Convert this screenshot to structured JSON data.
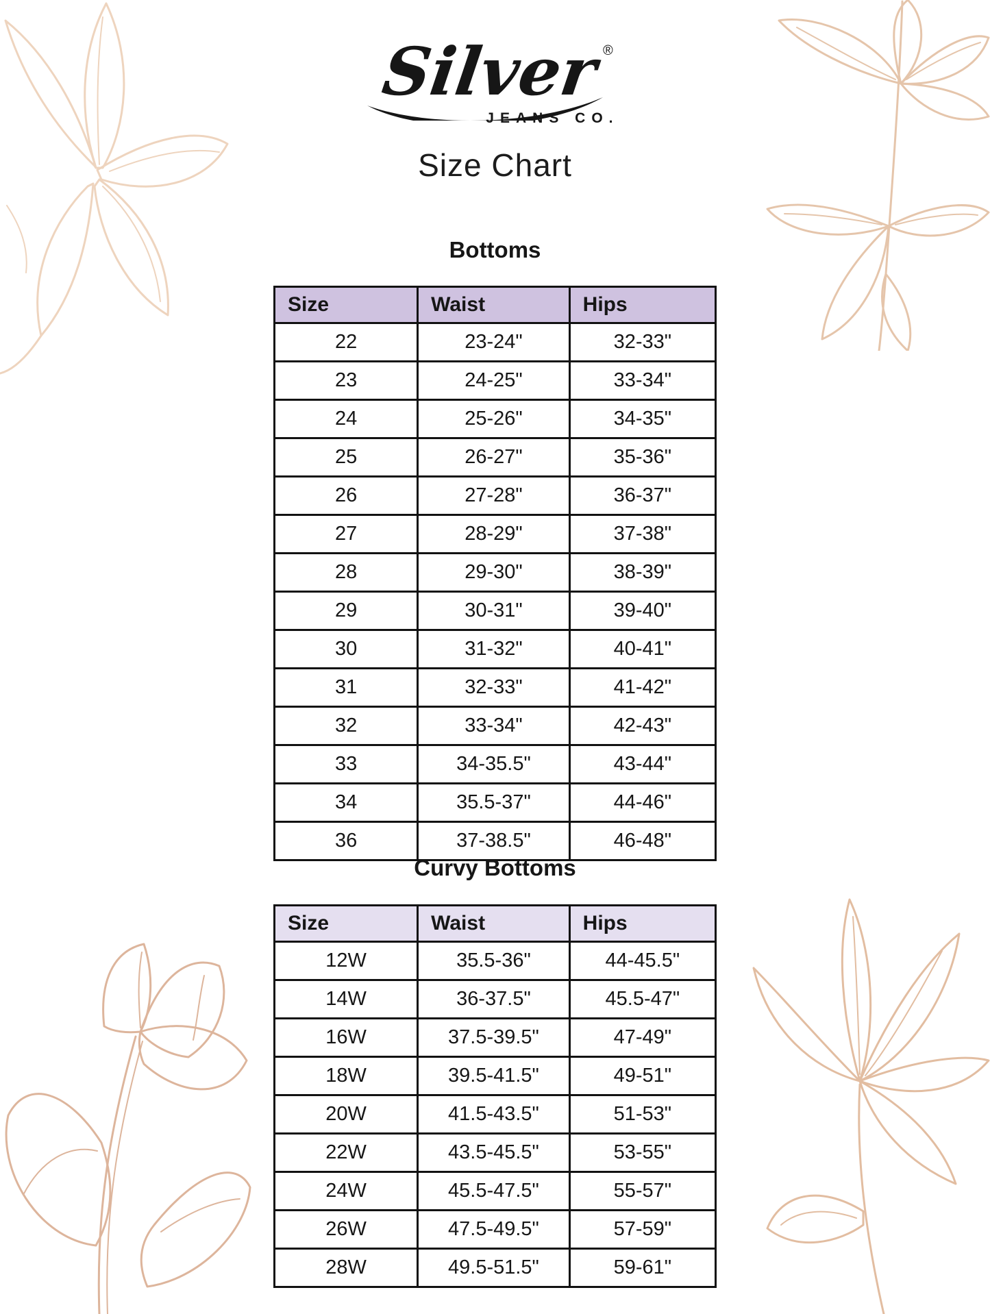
{
  "brand": {
    "logo_text": "Silver",
    "logo_subtext": "JEANS CO.",
    "registered_mark": "®"
  },
  "page_title": "Size Chart",
  "sections": {
    "bottoms": {
      "heading": "Bottoms",
      "table": {
        "columns": [
          "Size",
          "Waist",
          "Hips"
        ],
        "header_bg": "#cfc2e0",
        "rows": [
          [
            "22",
            "23-24\"",
            "32-33\""
          ],
          [
            "23",
            "24-25\"",
            "33-34\""
          ],
          [
            "24",
            "25-26\"",
            "34-35\""
          ],
          [
            "25",
            "26-27\"",
            "35-36\""
          ],
          [
            "26",
            "27-28\"",
            "36-37\""
          ],
          [
            "27",
            "28-29\"",
            "37-38\""
          ],
          [
            "28",
            "29-30\"",
            "38-39\""
          ],
          [
            "29",
            "30-31\"",
            "39-40\""
          ],
          [
            "30",
            "31-32\"",
            "40-41\""
          ],
          [
            "31",
            "32-33\"",
            "41-42\""
          ],
          [
            "32",
            "33-34\"",
            "42-43\""
          ],
          [
            "33",
            "34-35.5\"",
            "43-44\""
          ],
          [
            "34",
            "35.5-37\"",
            "44-46\""
          ],
          [
            "36",
            "37-38.5\"",
            "46-48\""
          ]
        ]
      }
    },
    "curvy_bottoms": {
      "heading": "Curvy Bottoms",
      "table": {
        "columns": [
          "Size",
          "Waist",
          "Hips"
        ],
        "header_bg": "#e5dff0",
        "rows": [
          [
            "12W",
            "35.5-36\"",
            "44-45.5\""
          ],
          [
            "14W",
            "36-37.5\"",
            "45.5-47\""
          ],
          [
            "16W",
            "37.5-39.5\"",
            "47-49\""
          ],
          [
            "18W",
            "39.5-41.5\"",
            "49-51\""
          ],
          [
            "20W",
            "41.5-43.5\"",
            "51-53\""
          ],
          [
            "22W",
            "43.5-45.5\"",
            "53-55\""
          ],
          [
            "24W",
            "45.5-47.5\"",
            "55-57\""
          ],
          [
            "26W",
            "47.5-49.5\"",
            "57-59\""
          ],
          [
            "28W",
            "49.5-51.5\"",
            "59-61\""
          ]
        ]
      }
    }
  },
  "colors": {
    "background": "#ffffff",
    "table_border": "#121212",
    "text": "#161616",
    "brand_black": "#161616",
    "bottoms_header_bg": "#cfc2e0",
    "curvy_header_bg": "#e5dff0",
    "floral_top_left": "#eed4be",
    "floral_top_right": "#e5c5ab",
    "floral_bottom_left": "#ddb59c",
    "floral_bottom_right": "#e2bda1"
  },
  "decorations": [
    "floral-line-art-top-left",
    "leaf-branch-line-art-top-right",
    "tulip-line-art-bottom-left",
    "floral-line-art-bottom-right"
  ]
}
